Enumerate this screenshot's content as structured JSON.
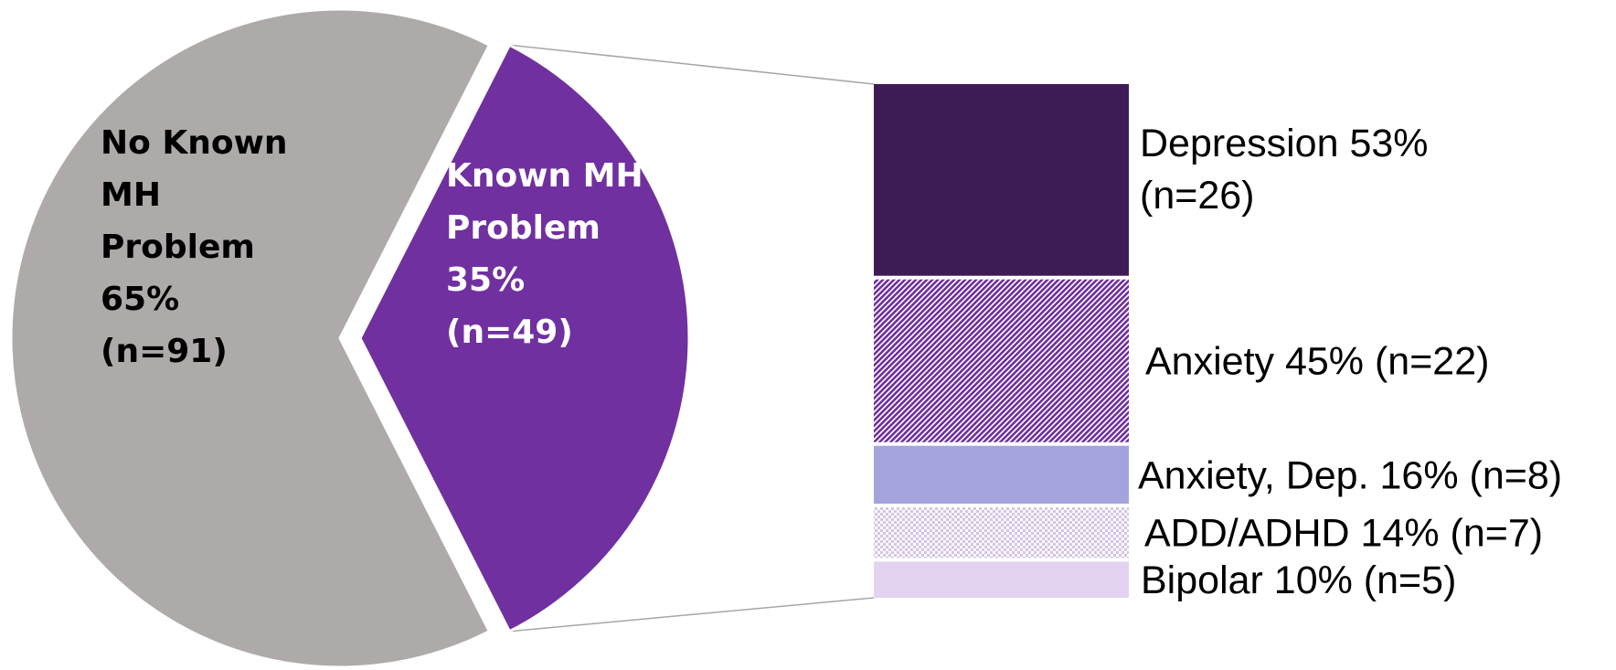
{
  "chart_data": [
    {
      "type": "pie",
      "slices": [
        {
          "label_lines": [
            "No Known",
            "MH",
            "Problem",
            "65%",
            "(n=91)"
          ],
          "value": 65,
          "n": 91,
          "color": "#ADAAA9",
          "label_color": "#000000",
          "exploded": false
        },
        {
          "label_lines": [
            "Known MH",
            "Problem",
            "35%",
            "(n=49)"
          ],
          "value": 35,
          "n": 49,
          "color": "#7030A0",
          "label_color": "#FFFFFF",
          "exploded": true
        }
      ]
    },
    {
      "type": "bar",
      "orientation": "stacked-vertical",
      "categories": [
        "Depression",
        "Anxiety",
        "Anxiety, Dep.",
        "ADD/ADHD",
        "Bipolar"
      ],
      "values": [
        53,
        45,
        16,
        14,
        10
      ],
      "counts": [
        26,
        22,
        8,
        7,
        5
      ],
      "labels": [
        [
          "Depression 53%",
          "(n=26)"
        ],
        [
          "Anxiety 45% (n=22)"
        ],
        [
          "Anxiety, Dep. 16% (n=8)"
        ],
        [
          "ADD/ADHD 14% (n=7)"
        ],
        [
          "Bipolar 10% (n=5)"
        ]
      ],
      "fills": [
        {
          "color": "#3F1B55",
          "pattern": "solid"
        },
        {
          "color": "#7030A0",
          "pattern": "diagonal-hatch"
        },
        {
          "color": "#A5A3DE",
          "pattern": "solid"
        },
        {
          "color": "#D4C4E6",
          "pattern": "checker"
        },
        {
          "color": "#E3D3F1",
          "pattern": "solid"
        }
      ]
    }
  ],
  "connector_color": "#A6A6A6"
}
